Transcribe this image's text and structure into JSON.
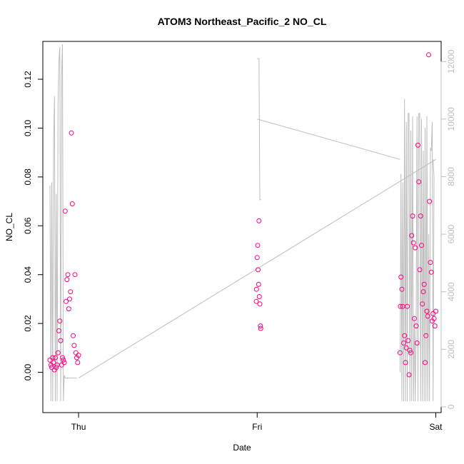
{
  "chart_data": {
    "type": "scatter",
    "title": "ATOM3 Northeast_Pacific_2 NO_CL",
    "xlabel": "Date",
    "ylabel": "NO_CL",
    "x_ticks": [
      {
        "value": 1.0,
        "label": "Thu"
      },
      {
        "value": 2.0,
        "label": "Fri"
      },
      {
        "value": 3.0,
        "label": "Sat"
      }
    ],
    "y_ticks": [
      0.0,
      0.02,
      0.04,
      0.06,
      0.08,
      0.1,
      0.12
    ],
    "y_tick_labels": [
      "0.00",
      "0.02",
      "0.04",
      "0.06",
      "0.08",
      "0.10",
      "0.12"
    ],
    "y2_ticks": [
      0,
      2000,
      4000,
      6000,
      8000,
      10000,
      12000
    ],
    "y2_tick_labels": [
      "0",
      "2000",
      "4000",
      "6000",
      "8000",
      "10000",
      "12000"
    ],
    "xlim": [
      0.8,
      3.03
    ],
    "ylim": [
      -0.0165,
      0.1355
    ],
    "y2lim": [
      -200,
      12700
    ],
    "grid": false,
    "colors": {
      "points": "#ff0080",
      "altitude_line": "#bdbdbd",
      "axes": "#000000",
      "right_axis": "#bdbdbd"
    },
    "series": [
      {
        "marker": "circle-open",
        "x": [
          0.84,
          0.845,
          0.85,
          0.855,
          0.86,
          0.865,
          0.87,
          0.875,
          0.88,
          0.885,
          0.89,
          0.895,
          0.9,
          0.905,
          0.91,
          0.915,
          0.92,
          0.925,
          0.93,
          0.935,
          0.94,
          0.945,
          0.95,
          0.955,
          0.96,
          0.965,
          0.97,
          0.975,
          0.98,
          0.985,
          0.99,
          0.995,
          1.0,
          1.995,
          1.996,
          2.0,
          2.003,
          2.005,
          2.008,
          2.01,
          2.012,
          2.015,
          2.018,
          2.02,
          2.8,
          2.802,
          2.805,
          2.81,
          2.815,
          2.82,
          2.825,
          2.83,
          2.835,
          2.84,
          2.845,
          2.85,
          2.855,
          2.86,
          2.865,
          2.87,
          2.875,
          2.88,
          2.885,
          2.89,
          2.895,
          2.9,
          2.905,
          2.91,
          2.915,
          2.92,
          2.925,
          2.93,
          2.935,
          2.94,
          2.945,
          2.95,
          2.955,
          2.96,
          2.965,
          2.97,
          2.975,
          2.98,
          2.985,
          2.99,
          2.995,
          3.0
        ],
        "y": [
          0.005,
          0.003,
          0.002,
          0.006,
          0.004,
          0.001,
          0.006,
          0.002,
          0.003,
          0.008,
          0.017,
          0.021,
          0.013,
          0.003,
          0.006,
          0.005,
          0.004,
          0.066,
          0.029,
          0.038,
          0.04,
          0.026,
          0.03,
          0.033,
          0.098,
          0.069,
          0.015,
          0.011,
          0.04,
          0.008,
          0.006,
          0.004,
          0.007,
          0.029,
          0.034,
          0.047,
          0.052,
          0.042,
          0.036,
          0.062,
          0.031,
          0.028,
          0.019,
          0.018,
          0.008,
          0.027,
          0.039,
          0.034,
          0.027,
          0.012,
          0.015,
          0.004,
          0.01,
          0.027,
          0.013,
          -0.001,
          0.009,
          0.008,
          0.056,
          0.064,
          0.053,
          0.022,
          0.051,
          0.019,
          0.012,
          0.093,
          0.078,
          0.042,
          0.064,
          0.052,
          0.028,
          0.033,
          0.036,
          0.004,
          0.015,
          0.025,
          0.023,
          0.13,
          0.07,
          0.045,
          0.041,
          0.021,
          0.024,
          0.022,
          0.019,
          0.025
        ]
      },
      {
        "name_hidden": true,
        "line": true,
        "axis": "right",
        "x": [
          0.84,
          0.845,
          0.85,
          0.855,
          0.86,
          0.865,
          0.87,
          0.875,
          0.88,
          0.885,
          0.89,
          0.895,
          0.9,
          0.905,
          0.91,
          0.915,
          0.92,
          0.925,
          0.93,
          0.935,
          0.94,
          0.945,
          0.95,
          0.955,
          0.96,
          0.965,
          0.97,
          0.975,
          0.98,
          0.985,
          0.99,
          2.0,
          2.005,
          2.01,
          2.015,
          2.02,
          2.022,
          2.0,
          2.8,
          2.8,
          2.805,
          2.81,
          2.815,
          2.82,
          2.825,
          2.83,
          2.835,
          2.84,
          2.845,
          2.85,
          2.855,
          2.86,
          2.865,
          2.87,
          2.875,
          2.88,
          2.885,
          2.89,
          2.895,
          2.9,
          2.905,
          2.91,
          2.915,
          2.92,
          2.925,
          2.93,
          2.935,
          2.94,
          2.945,
          2.95,
          2.955,
          2.96,
          2.965,
          2.97,
          2.975,
          2.98,
          2.985,
          2.99,
          2.985,
          3.0,
          1.0,
          2.8
        ],
        "y": [
          7700,
          200,
          7800,
          200,
          9000,
          10800,
          200,
          7400,
          200,
          10500,
          12000,
          12500,
          200,
          11500,
          12600,
          200,
          1100,
          1000,
          1000,
          1000,
          1000,
          1000,
          1000,
          1000,
          1000,
          1000,
          1000,
          1000,
          1000,
          1000,
          1000,
          12100,
          12100,
          12100,
          7200,
          7200,
          7200,
          10000,
          8600,
          1200,
          8100,
          200,
          7800,
          200,
          10700,
          200,
          9900,
          200,
          10200,
          10200,
          200,
          9600,
          200,
          10100,
          200,
          3100,
          200,
          2900,
          10100,
          200,
          10200,
          10200,
          200,
          10000,
          200,
          8900,
          200,
          9700,
          200,
          10100,
          200,
          6000,
          200,
          9000,
          8900,
          9900,
          200,
          8000,
          8600,
          8600,
          1000,
          2900
        ]
      }
    ]
  }
}
